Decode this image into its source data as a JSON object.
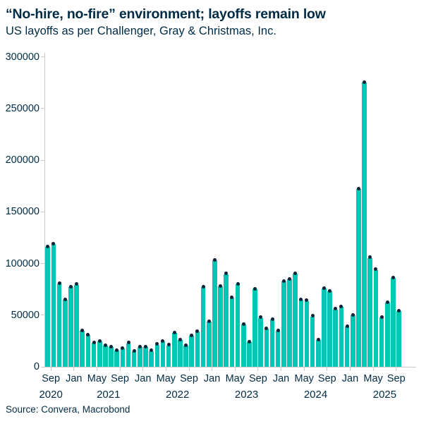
{
  "header": {
    "title": "“No-hire, no-fire” environment; layoffs remain low",
    "subtitle": "US layoffs as per Challenger, Gray & Christmas, Inc."
  },
  "footer": {
    "source": "Source: Convera, Macrobond"
  },
  "chart_data": {
    "type": "bar",
    "title": "“No-hire, no-fire” environment; layoffs remain low",
    "subtitle": "US layoffs as per Challenger, Gray & Christmas, Inc.",
    "xlabel": "",
    "ylabel": "",
    "ylim": [
      0,
      300000
    ],
    "yticks": [
      0,
      50000,
      100000,
      150000,
      200000,
      250000,
      300000
    ],
    "grid": false,
    "legend": null,
    "xtick_month_names": [
      "Jan",
      "May",
      "Sep"
    ],
    "years": [
      "2020",
      "2021",
      "2022",
      "2023",
      "2024",
      "2025"
    ],
    "categories": [
      "Aug 2020",
      "Sep 2020",
      "Oct 2020",
      "Nov 2020",
      "Dec 2020",
      "Jan 2021",
      "Feb 2021",
      "Mar 2021",
      "Apr 2021",
      "May 2021",
      "Jun 2021",
      "Jul 2021",
      "Aug 2021",
      "Sep 2021",
      "Oct 2021",
      "Nov 2021",
      "Dec 2021",
      "Jan 2022",
      "Feb 2022",
      "Mar 2022",
      "Apr 2022",
      "May 2022",
      "Jun 2022",
      "Jul 2022",
      "Aug 2022",
      "Sep 2022",
      "Oct 2022",
      "Nov 2022",
      "Dec 2022",
      "Jan 2023",
      "Feb 2023",
      "Mar 2023",
      "Apr 2023",
      "May 2023",
      "Jun 2023",
      "Jul 2023",
      "Aug 2023",
      "Sep 2023",
      "Oct 2023",
      "Nov 2023",
      "Dec 2023",
      "Jan 2024",
      "Feb 2024",
      "Mar 2024",
      "Apr 2024",
      "May 2024",
      "Jun 2024",
      "Jul 2024",
      "Aug 2024",
      "Sep 2024",
      "Oct 2024",
      "Nov 2024",
      "Dec 2024",
      "Jan 2025",
      "Feb 2025",
      "Mar 2025",
      "Apr 2025",
      "May 2025",
      "Jun 2025",
      "Jul 2025",
      "Aug 2025",
      "Sep 2025"
    ],
    "values": [
      115762,
      118804,
      80666,
      64797,
      77030,
      79552,
      34531,
      30603,
      22913,
      24586,
      20476,
      18942,
      15723,
      17895,
      22822,
      14875,
      19052,
      19064,
      15245,
      21387,
      24286,
      20712,
      32517,
      25810,
      20485,
      29989,
      33843,
      76835,
      43651,
      102943,
      77770,
      89703,
      66995,
      80089,
      40709,
      23697,
      75151,
      47457,
      36836,
      45510,
      34817,
      82307,
      84638,
      90309,
      64789,
      63816,
      48786,
      25885,
      75891,
      72821,
      55597,
      57727,
      38792,
      49795,
      172017,
      275240,
      105441,
      93816,
      47999,
      62075,
      85979,
      54064
    ],
    "colors": {
      "bar": "#00c6b4",
      "marker": "#0e2337",
      "text": "#002b45",
      "axis": "#c9c9c9"
    }
  }
}
